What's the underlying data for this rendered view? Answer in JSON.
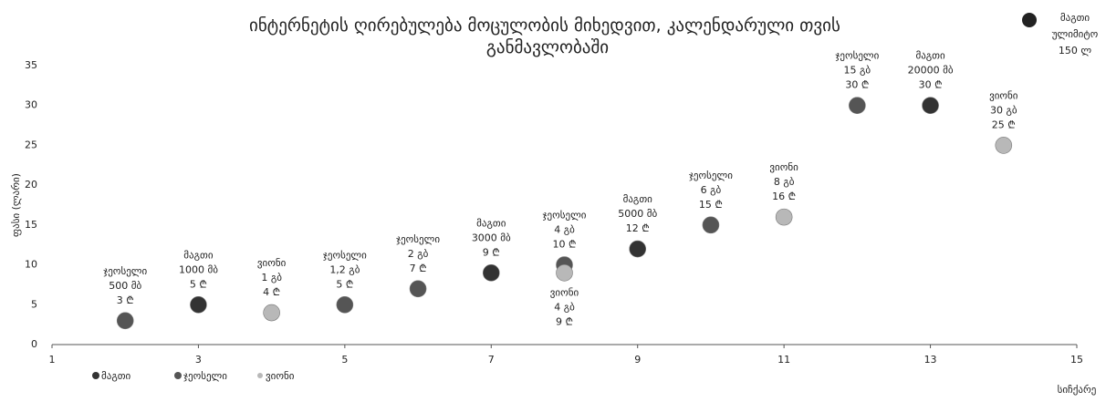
{
  "chart_data": {
    "type": "scatter",
    "title": "ინტერნეტის ღირებულება მოცულობის მიხედვით, კალენდარული თვის განმავლობაში",
    "x_label": "სიჩქარე",
    "y_label": "ფასი (ლარი)",
    "xlim": [
      1,
      15
    ],
    "xticks": [
      1,
      3,
      5,
      7,
      9,
      11,
      13,
      15
    ],
    "ylim": [
      0,
      35
    ],
    "yticks": [
      0,
      5,
      10,
      15,
      20,
      25,
      30,
      35
    ],
    "grid": false,
    "legend": "bottom-left",
    "series": [
      {
        "name": "მაგთი",
        "color": "#333333",
        "x": [
          3,
          7,
          9,
          13
        ],
        "values": [
          5,
          9,
          12,
          30
        ],
        "value_labels": [
          [
            "მაგთი",
            "1000 მბ",
            "5 ₾"
          ],
          [
            "მაგთი",
            "3000 მბ",
            "9 ₾"
          ],
          [
            "მაგთი",
            "5000 მბ",
            "12 ₾"
          ],
          [
            "მაგთი",
            "20000 მბ",
            "30 ₾"
          ]
        ]
      },
      {
        "name": "ჯეოსელი",
        "color": "#555555",
        "x": [
          2,
          5,
          6,
          8,
          10,
          12
        ],
        "values": [
          3,
          5,
          7,
          10,
          15,
          30
        ],
        "value_labels": [
          [
            "ჯეოსელი",
            "500 მბ",
            "3 ₾"
          ],
          [
            "ჯეოსელი",
            "1,2 გბ",
            "5 ₾"
          ],
          [
            "ჯეოსელი",
            "2 გბ",
            "7 ₾"
          ],
          [
            "ჯეოსელი",
            "4 გბ",
            "10 ₾"
          ],
          [
            "ჯეოსელი",
            "6 გბ",
            "15 ₾"
          ],
          [
            "ჯეოსელი",
            "15 გბ",
            "30 ₾"
          ]
        ]
      },
      {
        "name": "ვიონი",
        "color": "#b8b8b8",
        "x": [
          4,
          8,
          11,
          14
        ],
        "values": [
          4,
          9,
          16,
          25
        ],
        "value_labels": [
          [
            "ვიონი",
            "1 გბ",
            "4 ₾"
          ],
          [
            "ვიონი",
            "4 გბ",
            "9 ₾"
          ],
          [
            "ვიონი",
            "8 გბ",
            "16 ₾"
          ],
          [
            "ვიონი",
            "30 გბ",
            "25 ₾"
          ]
        ]
      }
    ],
    "annotation": [
      "მაგთი",
      "ულიმიტო",
      "150 ლ"
    ]
  }
}
